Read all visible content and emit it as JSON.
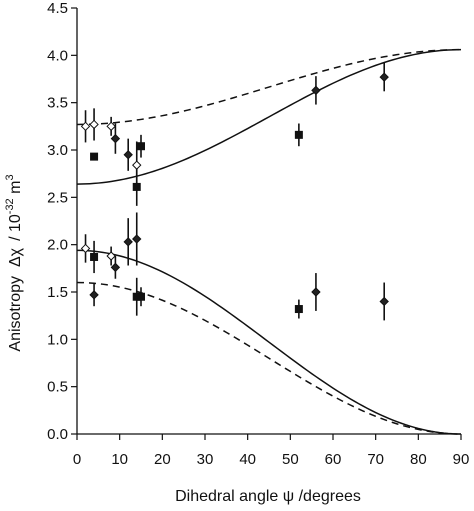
{
  "chart_data": {
    "type": "scatter",
    "xlabel": "Dihedral angle ψ /degrees",
    "ylabel_prefix": "Anisotropy",
    "ylabel_symbol": "Δχ",
    "ylabel_unit_pre": "/ 10",
    "ylabel_unit_exp": "-32",
    "ylabel_unit_post": " m",
    "ylabel_unit_exp2": "3",
    "xlim": [
      0,
      90
    ],
    "ylim": [
      0,
      4.5
    ],
    "x_ticks": [
      "0",
      "10",
      "20",
      "30",
      "40",
      "50",
      "60",
      "70",
      "80",
      "90"
    ],
    "y_ticks": [
      "0.0",
      "0.5",
      "1.0",
      "1.5",
      "2.0",
      "2.5",
      "3.0",
      "3.5",
      "4.0",
      "4.5"
    ],
    "grid": false,
    "legend": "none",
    "curves": [
      {
        "style": "solid",
        "from": 2.64,
        "to": 4.06
      },
      {
        "style": "dashed",
        "from": 3.27,
        "to": 4.06
      },
      {
        "style": "solid",
        "from": 1.94,
        "to": 0.0
      },
      {
        "style": "dashed",
        "from": 1.6,
        "to": 0.0
      }
    ],
    "diamond_points": [
      {
        "x": 2,
        "y": 3.25,
        "err": 0.17,
        "open": true
      },
      {
        "x": 4,
        "y": 3.27,
        "err": 0.17,
        "open": true
      },
      {
        "x": 8,
        "y": 3.25,
        "err": 0.1,
        "open": true
      },
      {
        "x": 9,
        "y": 3.12,
        "err": 0.16,
        "open": false
      },
      {
        "x": 12,
        "y": 2.95,
        "err": 0.17,
        "open": false
      },
      {
        "x": 14,
        "y": 2.84,
        "err": 0.25,
        "open": true
      },
      {
        "x": 56,
        "y": 3.63,
        "err": 0.15,
        "open": false
      },
      {
        "x": 72,
        "y": 3.77,
        "err": 0.15,
        "open": false
      },
      {
        "x": 2,
        "y": 1.96,
        "err": 0.15,
        "open": true
      },
      {
        "x": 4,
        "y": 1.47,
        "err": 0.12,
        "open": false
      },
      {
        "x": 8,
        "y": 1.88,
        "err": 0.1,
        "open": true
      },
      {
        "x": 9,
        "y": 1.76,
        "err": 0.12,
        "open": false
      },
      {
        "x": 12,
        "y": 2.03,
        "err": 0.25,
        "open": false
      },
      {
        "x": 14,
        "y": 2.06,
        "err": 0.28,
        "open": false
      },
      {
        "x": 56,
        "y": 1.5,
        "err": 0.2,
        "open": false
      },
      {
        "x": 72,
        "y": 1.4,
        "err": 0.2,
        "open": false
      }
    ],
    "square_points": [
      {
        "x": 4,
        "y": 2.93,
        "err": 0
      },
      {
        "x": 15,
        "y": 3.04,
        "err": 0.12
      },
      {
        "x": 14,
        "y": 2.61,
        "err": 0.2
      },
      {
        "x": 52,
        "y": 3.16,
        "err": 0.12
      },
      {
        "x": 4,
        "y": 1.87,
        "err": 0.17
      },
      {
        "x": 14,
        "y": 1.45,
        "err": 0.2
      },
      {
        "x": 15,
        "y": 1.45,
        "err": 0.1
      },
      {
        "x": 52,
        "y": 1.32,
        "err": 0.1
      }
    ]
  }
}
